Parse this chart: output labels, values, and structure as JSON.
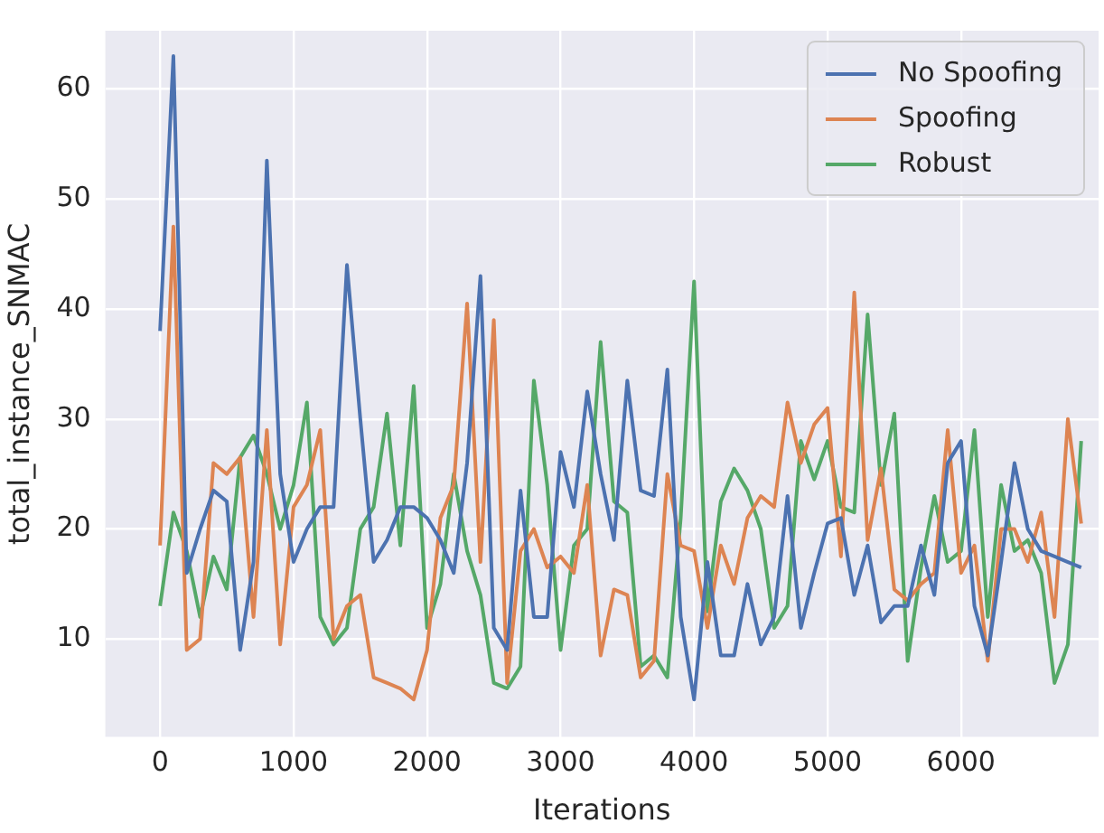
{
  "chart_data": {
    "type": "line",
    "xlabel": "Iterations",
    "ylabel": "total_instance_SNMAC",
    "x": [
      0,
      100,
      200,
      300,
      400,
      500,
      600,
      700,
      800,
      900,
      1000,
      1100,
      1200,
      1300,
      1400,
      1500,
      1600,
      1700,
      1800,
      1900,
      2000,
      2100,
      2200,
      2300,
      2400,
      2500,
      2600,
      2700,
      2800,
      2900,
      3000,
      3100,
      3200,
      3300,
      3400,
      3500,
      3600,
      3700,
      3800,
      3900,
      4000,
      4100,
      4200,
      4300,
      4400,
      4500,
      4600,
      4700,
      4800,
      4900,
      5000,
      5100,
      5200,
      5300,
      5400,
      5500,
      5600,
      5700,
      5800,
      5900,
      6000,
      6100,
      6200,
      6300,
      6400,
      6500,
      6600,
      6700,
      6800,
      6900
    ],
    "series": [
      {
        "name": "No Spoofing",
        "color": "#4c72b0",
        "values": [
          38,
          63,
          16,
          20,
          23.5,
          22.5,
          9,
          17,
          53.5,
          25,
          17,
          20,
          22,
          22,
          44,
          30,
          17,
          19,
          22,
          22,
          21,
          19,
          16,
          26,
          43,
          11,
          9,
          23.5,
          12,
          12,
          27,
          22,
          32.5,
          25,
          19,
          33.5,
          23.5,
          23,
          34.5,
          12,
          4.5,
          17,
          8.5,
          8.5,
          15,
          9.5,
          12,
          23,
          11,
          16,
          20.5,
          21,
          14,
          18.5,
          11.5,
          13,
          13,
          18.5,
          14,
          26,
          28,
          13,
          8.5,
          17,
          26,
          20,
          18,
          17.5,
          17,
          16.5
        ]
      },
      {
        "name": "Spoofing",
        "color": "#dd8452",
        "values": [
          18.5,
          47.5,
          9,
          10,
          26,
          25,
          26.5,
          12,
          29,
          9.5,
          22,
          24,
          29,
          10,
          13,
          14,
          6.5,
          6,
          5.5,
          4.5,
          9,
          21,
          24,
          40.5,
          17,
          39,
          6,
          18,
          20,
          16.5,
          17.5,
          16,
          24,
          8.5,
          14.5,
          14,
          6.5,
          8,
          25,
          18.5,
          18,
          11,
          18.5,
          15,
          21,
          23,
          22,
          31.5,
          26,
          29.5,
          31,
          17.5,
          41.5,
          19,
          25.5,
          14.5,
          13.5,
          15,
          16,
          29,
          16,
          18.5,
          8,
          20,
          20,
          17,
          21.5,
          12,
          30,
          20.5
        ]
      },
      {
        "name": "Robust",
        "color": "#55a868",
        "values": [
          13,
          21.5,
          18,
          12,
          17.5,
          14.5,
          26.5,
          28.5,
          25,
          20,
          24,
          31.5,
          12,
          9.5,
          11,
          20,
          22,
          30.5,
          18.5,
          33,
          11,
          15,
          25,
          18,
          14,
          6,
          5.5,
          7.5,
          33.5,
          24,
          9,
          18.5,
          20,
          37,
          22.5,
          21.5,
          7.5,
          8.5,
          6.5,
          21,
          42.5,
          12.5,
          22.5,
          25.5,
          23.5,
          20,
          11,
          13,
          28,
          24.5,
          28,
          22,
          21.5,
          39.5,
          24,
          30.5,
          8,
          16.5,
          23,
          17,
          18,
          29,
          12,
          24,
          18,
          19,
          16,
          6,
          9.5,
          28
        ]
      }
    ],
    "xlim": [
      -410,
      7030
    ],
    "xticks": [
      0,
      1000,
      2000,
      3000,
      4000,
      5000,
      6000
    ],
    "ylim": [
      1.1,
      65.3
    ],
    "yticks": [
      10,
      20,
      30,
      40,
      50,
      60
    ],
    "grid": true,
    "legend": "top right"
  }
}
